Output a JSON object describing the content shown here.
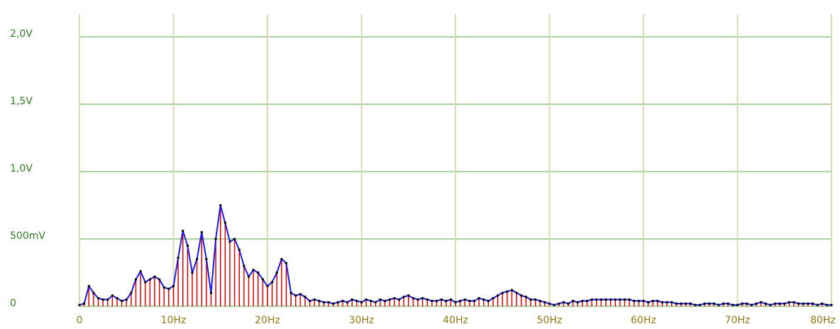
{
  "chart_data": {
    "type": "spectrum",
    "x": [
      0,
      0.5,
      1,
      1.5,
      2,
      2.5,
      3,
      3.5,
      4,
      4.5,
      5,
      5.5,
      6,
      6.5,
      7,
      7.5,
      8,
      8.5,
      9,
      9.5,
      10,
      10.5,
      11,
      11.5,
      12,
      12.5,
      13,
      13.5,
      14,
      14.5,
      15,
      15.5,
      16,
      16.5,
      17,
      17.5,
      18,
      18.5,
      19,
      19.5,
      20,
      20.5,
      21,
      21.5,
      22,
      22.5,
      23,
      23.5,
      24,
      24.5,
      25,
      25.5,
      26,
      26.5,
      27,
      27.5,
      28,
      28.5,
      29,
      29.5,
      30,
      30.5,
      31,
      31.5,
      32,
      32.5,
      33,
      33.5,
      34,
      34.5,
      35,
      35.5,
      36,
      36.5,
      37,
      37.5,
      38,
      38.5,
      39,
      39.5,
      40,
      40.5,
      41,
      41.5,
      42,
      42.5,
      43,
      43.5,
      44,
      44.5,
      45,
      45.5,
      46,
      46.5,
      47,
      47.5,
      48,
      48.5,
      49,
      49.5,
      50,
      50.5,
      51,
      51.5,
      52,
      52.5,
      53,
      53.5,
      54,
      54.5,
      55,
      55.5,
      56,
      56.5,
      57,
      57.5,
      58,
      58.5,
      59,
      59.5,
      60,
      60.5,
      61,
      61.5,
      62,
      62.5,
      63,
      63.5,
      64,
      64.5,
      65,
      65.5,
      66,
      66.5,
      67,
      67.5,
      68,
      68.5,
      69,
      69.5,
      70,
      70.5,
      71,
      71.5,
      72,
      72.5,
      73,
      73.5,
      74,
      74.5,
      75,
      75.5,
      76,
      76.5,
      77,
      77.5,
      78,
      78.5,
      79,
      79.5,
      80
    ],
    "series": [
      {
        "color": "#e00000",
        "line_color": "#1a1ae6",
        "marker_color": "#000000",
        "values": [
          0.01,
          0.02,
          0.15,
          0.1,
          0.06,
          0.05,
          0.05,
          0.08,
          0.06,
          0.04,
          0.05,
          0.1,
          0.2,
          0.26,
          0.18,
          0.2,
          0.22,
          0.2,
          0.14,
          0.13,
          0.15,
          0.36,
          0.56,
          0.45,
          0.25,
          0.35,
          0.55,
          0.35,
          0.1,
          0.5,
          0.75,
          0.62,
          0.48,
          0.5,
          0.42,
          0.3,
          0.22,
          0.27,
          0.25,
          0.2,
          0.15,
          0.18,
          0.25,
          0.35,
          0.32,
          0.1,
          0.08,
          0.09,
          0.07,
          0.04,
          0.05,
          0.04,
          0.03,
          0.03,
          0.02,
          0.03,
          0.04,
          0.03,
          0.05,
          0.04,
          0.03,
          0.05,
          0.04,
          0.03,
          0.05,
          0.04,
          0.05,
          0.06,
          0.05,
          0.07,
          0.08,
          0.06,
          0.05,
          0.06,
          0.05,
          0.04,
          0.04,
          0.05,
          0.04,
          0.05,
          0.03,
          0.04,
          0.05,
          0.04,
          0.04,
          0.06,
          0.05,
          0.04,
          0.06,
          0.08,
          0.1,
          0.11,
          0.12,
          0.1,
          0.08,
          0.07,
          0.05,
          0.05,
          0.04,
          0.03,
          0.02,
          0.01,
          0.02,
          0.03,
          0.02,
          0.04,
          0.03,
          0.04,
          0.04,
          0.05,
          0.05,
          0.05,
          0.05,
          0.05,
          0.05,
          0.05,
          0.05,
          0.05,
          0.04,
          0.04,
          0.04,
          0.03,
          0.04,
          0.04,
          0.03,
          0.03,
          0.03,
          0.02,
          0.02,
          0.02,
          0.02,
          0.01,
          0.01,
          0.02,
          0.02,
          0.02,
          0.01,
          0.02,
          0.02,
          0.01,
          0.01,
          0.02,
          0.02,
          0.01,
          0.02,
          0.03,
          0.02,
          0.01,
          0.02,
          0.02,
          0.02,
          0.03,
          0.03,
          0.02,
          0.02,
          0.02,
          0.02,
          0.01,
          0.02,
          0.01,
          0.01
        ]
      }
    ],
    "xlim": [
      0,
      80
    ],
    "xticks": [
      0,
      {
        "value": 10,
        "label": "10Hz"
      },
      {
        "value": 20,
        "label": "20Hz"
      },
      {
        "value": 30,
        "label": "30Hz"
      },
      {
        "value": 40,
        "label": "40Hz"
      },
      {
        "value": 50,
        "label": "50Hz"
      },
      {
        "value": 60,
        "label": "60Hz"
      },
      {
        "value": 70,
        "label": "70Hz"
      },
      {
        "value": 80,
        "label": "80Hz"
      }
    ],
    "ylim": [
      0,
      2.0
    ],
    "yticks": [
      0,
      {
        "value": 0.5,
        "label": "500mV"
      },
      {
        "value": 1.0,
        "label": "1,0V"
      },
      {
        "value": 1.5,
        "label": "1,5V"
      },
      {
        "value": 2.0,
        "label": "2,0V"
      }
    ],
    "grid": true
  }
}
